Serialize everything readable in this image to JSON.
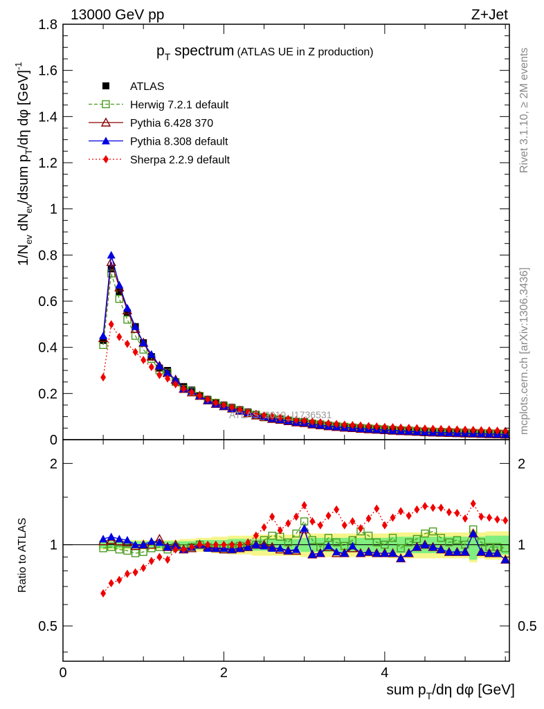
{
  "header": {
    "left": "13000 GeV pp",
    "right": "Z+Jet"
  },
  "title": {
    "main": "p",
    "main_sub": "T",
    "main_rest": " spectrum",
    "aside": "(ATLAS UE in Z production)"
  },
  "side_text": {
    "rivet": "Rivet 3.1.10, ≥ 2M events",
    "mcplots": "mcplots.cern.ch [arXiv:1306.3436]"
  },
  "watermark": "ATLAS_2019_I1736531",
  "upper_axis": {
    "ylabel": "1/N_ev dN_ev/dsum p_T/dη dφ [GeV]^-1",
    "ticks": [
      "0",
      "0.2",
      "0.4",
      "0.6",
      "0.8",
      "1",
      "1.2",
      "1.4",
      "1.6",
      "1.8"
    ]
  },
  "lower_axis": {
    "ylabel": "Ratio to ATLAS",
    "ticks_left": [
      "0.5",
      "1",
      "2"
    ],
    "ticks_right": [
      "0.5",
      "1",
      "2"
    ]
  },
  "x_axis": {
    "xlabel": "sum p_T/dη dφ [GeV]",
    "ticks": [
      "0",
      "2",
      "4"
    ]
  },
  "legend": [
    {
      "label": "ATLAS",
      "color": "#000000",
      "marker": "square-filled",
      "line": "none"
    },
    {
      "label": "Herwig 7.2.1 default",
      "color": "#4a9a1e",
      "marker": "square-open",
      "line": "dashed"
    },
    {
      "label": "Pythia 6.428 370",
      "color": "#8b0000",
      "marker": "triangle-open",
      "line": "solid"
    },
    {
      "label": "Pythia 8.308 default",
      "color": "#0000e0",
      "marker": "triangle-filled",
      "line": "solid"
    },
    {
      "label": "Sherpa 2.2.9 default",
      "color": "#ee0000",
      "marker": "diamond-filled",
      "line": "dotted"
    }
  ],
  "chart_data": {
    "type": "line",
    "xlabel": "sum p_T/dη dφ [GeV]",
    "ylabel": "1/N_ev dN_ev/dsum p_T/dη dφ [GeV]^-1",
    "xlim": [
      0,
      5.55
    ],
    "ylim": [
      0,
      1.8
    ],
    "ratio_ylabel": "Ratio to ATLAS",
    "ratio_ylim": [
      0.37,
      2.45
    ],
    "ratio_scale": "log",
    "grid": false,
    "legend_position": "top-left",
    "x": [
      0.5,
      0.6,
      0.7,
      0.8,
      0.9,
      1.0,
      1.1,
      1.2,
      1.3,
      1.4,
      1.5,
      1.6,
      1.7,
      1.8,
      1.9,
      2.0,
      2.1,
      2.2,
      2.3,
      2.4,
      2.5,
      2.6,
      2.7,
      2.8,
      2.9,
      3.0,
      3.1,
      3.2,
      3.3,
      3.4,
      3.5,
      3.6,
      3.7,
      3.8,
      3.9,
      4.0,
      4.1,
      4.2,
      4.3,
      4.4,
      4.5,
      4.6,
      4.7,
      4.8,
      4.9,
      5.0,
      5.1,
      5.2,
      5.3,
      5.4,
      5.5
    ],
    "series": [
      {
        "name": "ATLAS",
        "values": [
          0.43,
          0.74,
          0.64,
          0.55,
          0.49,
          0.42,
          0.36,
          0.31,
          0.3,
          0.25,
          0.23,
          0.215,
          0.19,
          0.175,
          0.16,
          0.15,
          0.14,
          0.13,
          0.12,
          0.11,
          0.1,
          0.095,
          0.09,
          0.085,
          0.08,
          0.078,
          0.072,
          0.068,
          0.063,
          0.06,
          0.057,
          0.054,
          0.052,
          0.05,
          0.048,
          0.046,
          0.044,
          0.042,
          0.041,
          0.039,
          0.037,
          0.036,
          0.034,
          0.033,
          0.032,
          0.031,
          0.03,
          0.029,
          0.028,
          0.027,
          0.026
        ]
      },
      {
        "name": "Herwig 7.2.1 default",
        "values": [
          0.41,
          0.72,
          0.61,
          0.52,
          0.45,
          0.39,
          0.35,
          0.3,
          0.29,
          0.25,
          0.22,
          0.21,
          0.19,
          0.17,
          0.16,
          0.145,
          0.135,
          0.125,
          0.115,
          0.108,
          0.097,
          0.092,
          0.088,
          0.083,
          0.078,
          0.075,
          0.07,
          0.066,
          0.062,
          0.059,
          0.056,
          0.053,
          0.051,
          0.049,
          0.047,
          0.045,
          0.043,
          0.041,
          0.04,
          0.038,
          0.036,
          0.035,
          0.034,
          0.033,
          0.032,
          0.031,
          0.03,
          0.029,
          0.028,
          0.027,
          0.026
        ]
      },
      {
        "name": "Pythia 6.428 370",
        "values": [
          0.44,
          0.77,
          0.66,
          0.56,
          0.48,
          0.42,
          0.36,
          0.32,
          0.29,
          0.26,
          0.22,
          0.205,
          0.19,
          0.17,
          0.155,
          0.145,
          0.135,
          0.125,
          0.115,
          0.105,
          0.098,
          0.09,
          0.086,
          0.08,
          0.075,
          0.072,
          0.066,
          0.062,
          0.058,
          0.055,
          0.052,
          0.05,
          0.047,
          0.045,
          0.043,
          0.041,
          0.039,
          0.037,
          0.036,
          0.034,
          0.032,
          0.031,
          0.03,
          0.029,
          0.028,
          0.027,
          0.026,
          0.025,
          0.024,
          0.023,
          0.022
        ]
      },
      {
        "name": "Pythia 8.308 default",
        "values": [
          0.45,
          0.8,
          0.67,
          0.57,
          0.49,
          0.42,
          0.37,
          0.32,
          0.29,
          0.26,
          0.22,
          0.21,
          0.19,
          0.17,
          0.155,
          0.145,
          0.135,
          0.125,
          0.117,
          0.108,
          0.099,
          0.092,
          0.087,
          0.081,
          0.076,
          0.074,
          0.067,
          0.063,
          0.059,
          0.056,
          0.053,
          0.051,
          0.048,
          0.046,
          0.044,
          0.042,
          0.04,
          0.038,
          0.037,
          0.035,
          0.033,
          0.032,
          0.031,
          0.03,
          0.029,
          0.028,
          0.027,
          0.026,
          0.025,
          0.024,
          0.023
        ]
      },
      {
        "name": "Sherpa 2.2.9 default",
        "values": [
          0.27,
          0.5,
          0.445,
          0.415,
          0.38,
          0.345,
          0.315,
          0.28,
          0.265,
          0.24,
          0.22,
          0.205,
          0.19,
          0.175,
          0.16,
          0.15,
          0.14,
          0.13,
          0.12,
          0.112,
          0.105,
          0.1,
          0.095,
          0.09,
          0.085,
          0.082,
          0.078,
          0.075,
          0.071,
          0.068,
          0.065,
          0.063,
          0.061,
          0.059,
          0.057,
          0.055,
          0.054,
          0.052,
          0.051,
          0.05,
          0.048,
          0.047,
          0.046,
          0.045,
          0.044,
          0.043,
          0.042,
          0.041,
          0.04,
          0.039,
          0.038
        ]
      }
    ],
    "ratio_series": [
      {
        "name": "Herwig 7.2.1 default",
        "values": [
          0.97,
          0.98,
          0.96,
          0.95,
          0.93,
          0.94,
          0.97,
          0.98,
          0.96,
          0.98,
          0.97,
          0.98,
          1.0,
          0.98,
          0.97,
          0.97,
          0.98,
          0.99,
          0.98,
          1.0,
          1.04,
          1.08,
          1.07,
          1.02,
          1.1,
          1.22,
          1.04,
          0.98,
          1.06,
          1.02,
          0.99,
          1.04,
          1.12,
          1.08,
          1.02,
          1.0,
          1.06,
          0.97,
          1.02,
          1.05,
          1.1,
          1.12,
          1.06,
          1.02,
          1.04,
          1.0,
          1.14,
          1.02,
          0.98,
          0.98,
          0.97
        ]
      },
      {
        "name": "Pythia 6.428 370",
        "values": [
          1.03,
          1.04,
          1.03,
          1.02,
          0.99,
          1.0,
          1.0,
          1.05,
          0.98,
          1.0,
          0.96,
          0.97,
          1.0,
          0.98,
          0.97,
          0.96,
          0.96,
          0.97,
          0.98,
          1.0,
          1.0,
          0.98,
          0.96,
          0.95,
          0.95,
          1.14,
          0.92,
          0.93,
          0.98,
          0.93,
          0.93,
          0.97,
          0.93,
          0.94,
          0.93,
          0.93,
          0.93,
          0.89,
          0.93,
          0.98,
          1.0,
          0.98,
          0.96,
          0.94,
          0.94,
          0.94,
          1.1,
          0.94,
          0.93,
          0.93,
          0.88
        ]
      },
      {
        "name": "Pythia 8.308 default",
        "values": [
          1.05,
          1.07,
          1.05,
          1.04,
          1.0,
          1.0,
          1.03,
          1.02,
          0.98,
          0.99,
          0.96,
          0.98,
          1.0,
          0.97,
          0.97,
          0.97,
          0.96,
          0.97,
          0.98,
          1.0,
          0.99,
          0.97,
          0.97,
          0.95,
          0.96,
          1.15,
          0.92,
          0.93,
          0.99,
          0.94,
          0.93,
          0.99,
          0.93,
          0.94,
          0.93,
          0.93,
          0.93,
          0.89,
          0.93,
          0.98,
          1.0,
          0.98,
          0.96,
          0.94,
          0.94,
          0.94,
          1.1,
          0.94,
          0.93,
          0.93,
          0.88
        ]
      },
      {
        "name": "Sherpa 2.2.9 default",
        "values": [
          0.66,
          0.72,
          0.74,
          0.78,
          0.79,
          0.82,
          0.87,
          0.9,
          0.88,
          0.96,
          0.96,
          0.98,
          1.0,
          1.0,
          1.0,
          1.0,
          1.0,
          1.0,
          1.02,
          1.08,
          1.16,
          1.27,
          1.13,
          1.2,
          1.27,
          1.4,
          1.22,
          1.18,
          1.28,
          1.35,
          1.18,
          1.22,
          1.15,
          1.25,
          1.36,
          1.18,
          1.26,
          1.33,
          1.28,
          1.35,
          1.39,
          1.37,
          1.37,
          1.32,
          1.31,
          1.25,
          1.42,
          1.27,
          1.26,
          1.24,
          1.23
        ]
      }
    ],
    "ratio_bands": {
      "inner_low": [
        0.97,
        0.97,
        0.97,
        0.97,
        0.97,
        0.97,
        0.97,
        0.97,
        0.97,
        0.97,
        0.97,
        0.97,
        0.96,
        0.96,
        0.96,
        0.96,
        0.95,
        0.95,
        0.95,
        0.95,
        0.95,
        0.95,
        0.95,
        0.95,
        0.95,
        0.94,
        0.94,
        0.94,
        0.94,
        0.94,
        0.94,
        0.94,
        0.94,
        0.94,
        0.94,
        0.94,
        0.93,
        0.93,
        0.93,
        0.93,
        0.93,
        0.93,
        0.93,
        0.93,
        0.93,
        0.93,
        0.88,
        0.93,
        0.92,
        0.92,
        0.92
      ],
      "inner_high": [
        1.03,
        1.03,
        1.03,
        1.03,
        1.03,
        1.03,
        1.03,
        1.03,
        1.03,
        1.03,
        1.03,
        1.03,
        1.04,
        1.04,
        1.04,
        1.04,
        1.05,
        1.05,
        1.05,
        1.05,
        1.05,
        1.05,
        1.05,
        1.05,
        1.05,
        1.06,
        1.06,
        1.06,
        1.06,
        1.06,
        1.06,
        1.06,
        1.06,
        1.06,
        1.06,
        1.06,
        1.07,
        1.07,
        1.07,
        1.07,
        1.07,
        1.07,
        1.07,
        1.07,
        1.07,
        1.07,
        1.12,
        1.07,
        1.08,
        1.08,
        1.08
      ],
      "outer_low": [
        0.96,
        0.96,
        0.96,
        0.96,
        0.96,
        0.96,
        0.96,
        0.96,
        0.96,
        0.96,
        0.95,
        0.95,
        0.94,
        0.94,
        0.93,
        0.93,
        0.92,
        0.92,
        0.92,
        0.91,
        0.91,
        0.91,
        0.91,
        0.91,
        0.91,
        0.9,
        0.9,
        0.9,
        0.9,
        0.9,
        0.9,
        0.9,
        0.9,
        0.9,
        0.9,
        0.9,
        0.89,
        0.89,
        0.89,
        0.89,
        0.89,
        0.89,
        0.89,
        0.89,
        0.89,
        0.89,
        0.86,
        0.89,
        0.88,
        0.88,
        0.88
      ],
      "outer_high": [
        1.04,
        1.04,
        1.04,
        1.04,
        1.04,
        1.04,
        1.04,
        1.04,
        1.04,
        1.04,
        1.05,
        1.05,
        1.06,
        1.06,
        1.07,
        1.07,
        1.08,
        1.08,
        1.08,
        1.09,
        1.09,
        1.09,
        1.09,
        1.09,
        1.09,
        1.1,
        1.1,
        1.1,
        1.1,
        1.1,
        1.1,
        1.1,
        1.1,
        1.1,
        1.1,
        1.1,
        1.11,
        1.11,
        1.11,
        1.11,
        1.11,
        1.11,
        1.11,
        1.11,
        1.11,
        1.11,
        1.14,
        1.11,
        1.12,
        1.12,
        1.12
      ],
      "inner_color": "#80ee80",
      "outer_color": "#f5f58a"
    }
  }
}
